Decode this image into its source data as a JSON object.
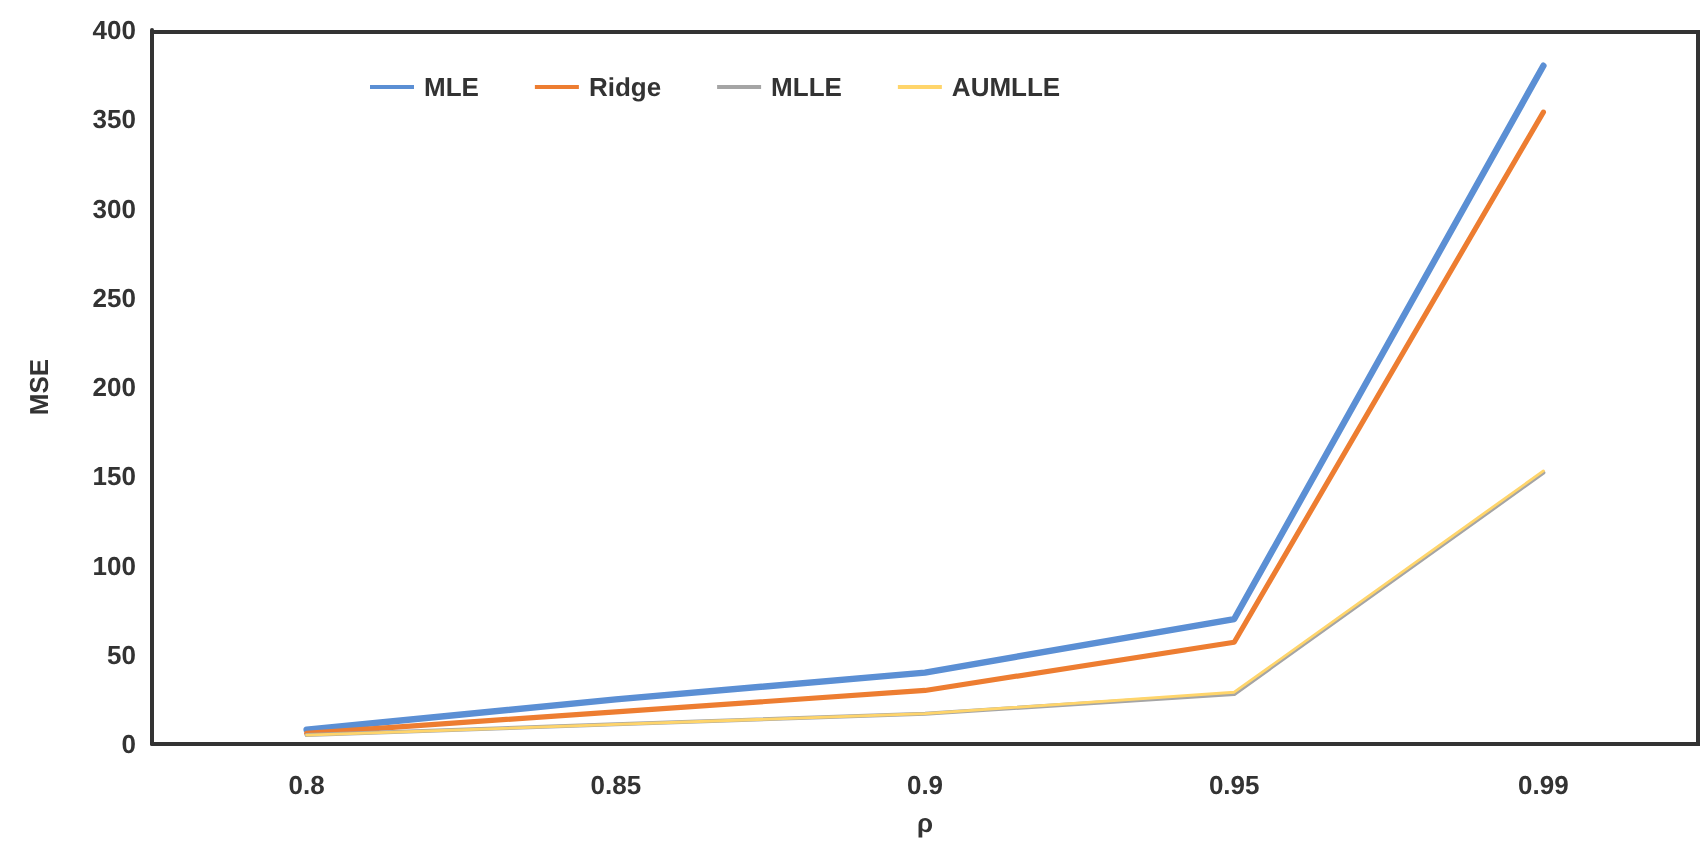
{
  "chart_data": {
    "type": "line",
    "xlabel": "ρ",
    "ylabel": "MSE",
    "categories": [
      "0.8",
      "0.85",
      "0.9",
      "0.95",
      "0.99"
    ],
    "series": [
      {
        "name": "MLE",
        "color": "#5b8fd4",
        "values": [
          8,
          25,
          40,
          70,
          380
        ]
      },
      {
        "name": "Ridge",
        "color": "#ed7d31",
        "values": [
          6,
          18,
          30,
          57,
          354
        ]
      },
      {
        "name": "MLLE",
        "color": "#a5a5a5",
        "values": [
          5,
          11,
          17,
          28,
          152
        ]
      },
      {
        "name": "AUMLLE",
        "color": "#ffd56b",
        "values": [
          5,
          11,
          17,
          29,
          153
        ]
      }
    ],
    "ylim": [
      0,
      400
    ],
    "yticks": [
      0,
      50,
      100,
      150,
      200,
      250,
      300,
      350,
      400
    ],
    "grid": false,
    "legend": "top left",
    "marker": "none",
    "line_style": "solid"
  }
}
